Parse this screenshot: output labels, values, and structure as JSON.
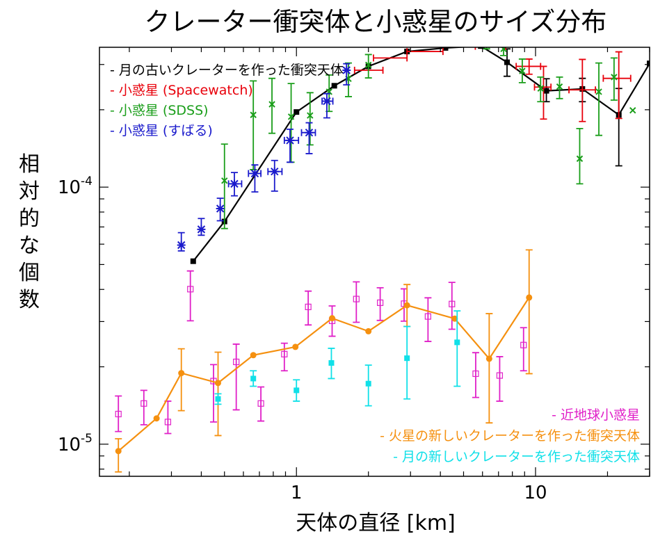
{
  "chart_data": {
    "type": "scatter",
    "title": "クレーター衝突体と小惑星のサイズ分布",
    "xlabel": "天体の直径 [km]",
    "ylabel": [
      "相",
      "対",
      "的",
      "な",
      "個",
      "数"
    ],
    "xscale": "log",
    "yscale": "log",
    "xlim": [
      0.15,
      30
    ],
    "ylim": [
      7.5e-06,
      0.00035
    ],
    "xticks": [
      {
        "value": 1,
        "label": "1"
      },
      {
        "value": 10,
        "label": "10"
      }
    ],
    "yticks": [
      {
        "value": 0.0001,
        "base": "10",
        "exp": "-4"
      },
      {
        "value": 1e-05,
        "base": "10",
        "exp": "-5"
      }
    ],
    "grid": false,
    "legend_top": [
      "old_moon",
      "spacewatch",
      "sdss",
      "subaru"
    ],
    "legend_bottom": [
      "neo",
      "mars",
      "new_moon"
    ],
    "series": [
      {
        "key": "old_moon",
        "name": "- 月の古いクレーターを作った衝突天体",
        "color": "#000000",
        "marker": "filled-square",
        "line": true,
        "points": [
          {
            "x": 0.37,
            "y": 5.15e-05
          },
          {
            "x": 0.5,
            "y": 7.35e-05
          },
          {
            "x": 1.0,
            "y": 0.000196
          },
          {
            "x": 1.44,
            "y": 0.000248
          },
          {
            "x": 2.0,
            "y": 0.000295
          },
          {
            "x": 2.9,
            "y": 0.000337
          },
          {
            "x": 4.2,
            "y": 0.000348
          },
          {
            "x": 5.9,
            "y": 0.000354
          },
          {
            "x": 7.6,
            "y": 0.000306,
            "ylo": 0.00027,
            "yhi": 0.000345
          },
          {
            "x": 11.1,
            "y": 0.000237,
            "ylo": 0.000215,
            "yhi": 0.000264
          },
          {
            "x": 15.7,
            "y": 0.000241,
            "ylo": 0.000215,
            "yhi": 0.000265
          },
          {
            "x": 22.3,
            "y": 0.000191,
            "ylo": 0.000121,
            "yhi": 0.000242
          },
          {
            "x": 30,
            "y": 0.000303
          }
        ]
      },
      {
        "key": "spacewatch",
        "name": "- 小惑星 (Spacewatch)",
        "color": "#e8000b",
        "marker": "none",
        "line": false,
        "points": [
          {
            "x": 1.95,
            "y": 0.000285,
            "xlo": 1.75,
            "xhi": 2.3
          },
          {
            "x": 2.45,
            "y": 0.000318,
            "xlo": 2.1,
            "xhi": 2.9
          },
          {
            "x": 3.4,
            "y": 0.000337,
            "xlo": 2.9,
            "xhi": 4.1
          },
          {
            "x": 4.6,
            "y": 0.000395,
            "ylo": 0.000375,
            "yhi": 0.000405,
            "xlo": 4.0,
            "xhi": 5.3
          },
          {
            "x": 6.6,
            "y": 0.000353,
            "xlo": 5.6,
            "xhi": 7.5
          },
          {
            "x": 9.4,
            "y": 0.000295,
            "ylo": 0.000275,
            "yhi": 0.000315,
            "xlo": 8.3,
            "xhi": 10.5
          },
          {
            "x": 10.8,
            "y": 0.000245,
            "ylo": 0.000184,
            "yhi": 0.000295,
            "xlo": 9.9,
            "xhi": 11.6
          },
          {
            "x": 15.7,
            "y": 0.000239,
            "ylo": 0.00018,
            "yhi": 0.000314,
            "xlo": 13.8,
            "xhi": 17.8
          },
          {
            "x": 22.3,
            "y": 0.000265,
            "ylo": 0.000185,
            "yhi": 0.000336,
            "xlo": 19.2,
            "xhi": 25.0
          }
        ]
      },
      {
        "key": "sdss",
        "name": "- 小惑星 (SDSS)",
        "color": "#1a9e1a",
        "marker": "cross",
        "line": false,
        "points": [
          {
            "x": 0.5,
            "y": 0.000106,
            "ylo": 6.9e-05,
            "yhi": 0.000147
          },
          {
            "x": 0.66,
            "y": 0.000191,
            "ylo": 0.000117,
            "yhi": 0.000259
          },
          {
            "x": 0.79,
            "y": 0.00021,
            "ylo": 0.000162,
            "yhi": 0.000265
          },
          {
            "x": 0.95,
            "y": 0.000188,
            "ylo": 0.000125,
            "yhi": 0.000253
          },
          {
            "x": 1.14,
            "y": 0.00019,
            "ylo": 0.000146,
            "yhi": 0.000233
          },
          {
            "x": 1.37,
            "y": 0.000235,
            "ylo": 0.000197,
            "yhi": 0.000273
          },
          {
            "x": 1.65,
            "y": 0.000264,
            "ylo": 0.000225,
            "yhi": 0.000304
          },
          {
            "x": 2.0,
            "y": 0.000299,
            "ylo": 0.000266,
            "yhi": 0.000328
          },
          {
            "x": 3.45,
            "y": 0.000364,
            "ylo": 0.000352,
            "yhi": 0.000376
          },
          {
            "x": 4.1,
            "y": 0.000368,
            "ylo": 0.000356,
            "yhi": 0.000377
          },
          {
            "x": 4.9,
            "y": 0.000375,
            "ylo": 0.000362,
            "yhi": 0.000384
          },
          {
            "x": 6.25,
            "y": 0.000357,
            "ylo": 0.000345,
            "yhi": 0.000366
          },
          {
            "x": 7.35,
            "y": 0.000345,
            "ylo": 0.000325,
            "yhi": 0.000356
          },
          {
            "x": 8.8,
            "y": 0.000283,
            "ylo": 0.000255,
            "yhi": 0.000315
          },
          {
            "x": 10.5,
            "y": 0.000242,
            "ylo": 0.000215,
            "yhi": 0.000268
          },
          {
            "x": 12.6,
            "y": 0.000246,
            "ylo": 0.000221,
            "yhi": 0.000268
          },
          {
            "x": 15.3,
            "y": 0.000129,
            "ylo": 0.000103,
            "yhi": 0.000169
          },
          {
            "x": 18.4,
            "y": 0.000235,
            "ylo": 0.000159,
            "yhi": 0.000304
          },
          {
            "x": 21.3,
            "y": 0.000268,
            "ylo": 0.000218,
            "yhi": 0.000318
          },
          {
            "x": 25.5,
            "y": 0.000199
          }
        ]
      },
      {
        "key": "subaru",
        "name": "- 小惑星 (すばる)",
        "color": "#1a1acc",
        "marker": "asterisk",
        "line": false,
        "points": [
          {
            "x": 0.33,
            "y": 5.95e-05,
            "ylo": 5.65e-05,
            "yhi": 6.65e-05
          },
          {
            "x": 0.4,
            "y": 6.85e-05,
            "ylo": 6.5e-05,
            "yhi": 7.55e-05
          },
          {
            "x": 0.48,
            "y": 8.25e-05,
            "ylo": 7.4e-05,
            "yhi": 9.05e-05
          },
          {
            "x": 0.55,
            "y": 0.000103,
            "ylo": 9.25e-05,
            "yhi": 0.000114,
            "xlo": 0.52,
            "xhi": 0.59
          },
          {
            "x": 0.67,
            "y": 0.000113,
            "ylo": 9.58e-05,
            "yhi": 0.000122,
            "xlo": 0.63,
            "xhi": 0.71
          },
          {
            "x": 0.81,
            "y": 0.000115,
            "ylo": 9.65e-05,
            "yhi": 0.000127,
            "xlo": 0.76,
            "xhi": 0.87
          },
          {
            "x": 0.94,
            "y": 0.000152,
            "ylo": 0.000125,
            "yhi": 0.000168,
            "xlo": 0.89,
            "xhi": 1.02
          },
          {
            "x": 1.13,
            "y": 0.000163,
            "ylo": 0.000135,
            "yhi": 0.000178,
            "xlo": 1.05,
            "xhi": 1.2
          },
          {
            "x": 1.34,
            "y": 0.000216,
            "ylo": 0.000186,
            "yhi": 0.000231,
            "xlo": 1.28,
            "xhi": 1.42
          },
          {
            "x": 1.62,
            "y": 0.000285,
            "ylo": 0.00025,
            "yhi": 0.000302
          }
        ]
      },
      {
        "key": "neo",
        "name": "- 近地球小惑星",
        "color": "#e020c8",
        "marker": "open-square",
        "line": false,
        "points": [
          {
            "x": 0.18,
            "y": 1.31e-05,
            "ylo": 1.12e-05,
            "yhi": 1.54e-05
          },
          {
            "x": 0.23,
            "y": 1.44e-05,
            "ylo": 1.19e-05,
            "yhi": 1.62e-05
          },
          {
            "x": 0.29,
            "y": 1.22e-05,
            "ylo": 1.1e-05,
            "yhi": 1.47e-05
          },
          {
            "x": 0.36,
            "y": 4.01e-05,
            "ylo": 3.02e-05,
            "yhi": 4.72e-05
          },
          {
            "x": 0.45,
            "y": 1.76e-05,
            "ylo": 1.22e-05,
            "yhi": 2.04e-05
          },
          {
            "x": 0.56,
            "y": 2.09e-05,
            "ylo": 1.36e-05,
            "yhi": 2.45e-05
          },
          {
            "x": 0.71,
            "y": 1.44e-05,
            "ylo": 1.23e-05,
            "yhi": 1.67e-05
          },
          {
            "x": 0.89,
            "y": 2.24e-05,
            "ylo": 1.93e-05,
            "yhi": 2.47e-05
          },
          {
            "x": 1.12,
            "y": 3.42e-05,
            "ylo": 2.91e-05,
            "yhi": 3.94e-05
          },
          {
            "x": 1.41,
            "y": 3.02e-05,
            "ylo": 2.63e-05,
            "yhi": 3.45e-05
          },
          {
            "x": 1.78,
            "y": 3.67e-05,
            "ylo": 2.98e-05,
            "yhi": 4.28e-05
          },
          {
            "x": 2.24,
            "y": 3.55e-05,
            "ylo": 3.03e-05,
            "yhi": 4.06e-05
          },
          {
            "x": 2.82,
            "y": 3.52e-05,
            "ylo": 3.01e-05,
            "yhi": 4.02e-05
          },
          {
            "x": 3.55,
            "y": 3.14e-05,
            "ylo": 2.51e-05,
            "yhi": 3.71e-05
          },
          {
            "x": 4.47,
            "y": 3.51e-05,
            "ylo": 2.8e-05,
            "yhi": 4.26e-05
          },
          {
            "x": 5.62,
            "y": 1.88e-05,
            "ylo": 1.52e-05,
            "yhi": 2.27e-05
          },
          {
            "x": 7.08,
            "y": 1.85e-05,
            "ylo": 1.47e-05,
            "yhi": 2.19e-05
          },
          {
            "x": 8.91,
            "y": 2.43e-05,
            "ylo": 1.93e-05,
            "yhi": 2.84e-05
          }
        ]
      },
      {
        "key": "mars",
        "name": "- 火星の新しいクレーターを作った衝突天体",
        "color": "#f5900f",
        "marker": "filled-circle",
        "line": true,
        "points": [
          {
            "x": 0.18,
            "y": 9.4e-06,
            "ylo": 7.8e-06,
            "yhi": 1.05e-05
          },
          {
            "x": 0.26,
            "y": 1.26e-05
          },
          {
            "x": 0.33,
            "y": 1.89e-05,
            "ylo": 1.35e-05,
            "yhi": 2.35e-05
          },
          {
            "x": 0.47,
            "y": 1.73e-05,
            "ylo": 1.08e-05,
            "yhi": 2.28e-05
          },
          {
            "x": 0.66,
            "y": 2.22e-05
          },
          {
            "x": 0.99,
            "y": 2.39e-05
          },
          {
            "x": 1.41,
            "y": 3.09e-05
          },
          {
            "x": 2.0,
            "y": 2.75e-05
          },
          {
            "x": 2.9,
            "y": 3.47e-05,
            "ylo": 2.87e-05,
            "yhi": 4.18e-05
          },
          {
            "x": 4.59,
            "y": 3.08e-05
          },
          {
            "x": 6.4,
            "y": 2.15e-05,
            "ylo": 1.21e-05,
            "yhi": 3.22e-05
          },
          {
            "x": 9.4,
            "y": 3.72e-05,
            "ylo": 1.88e-05,
            "yhi": 5.7e-05
          }
        ]
      },
      {
        "key": "new_moon",
        "name": "- 月の新しいクレーターを作った衝突天体",
        "color": "#10e0e8",
        "marker": "filled-square",
        "line": false,
        "points": [
          {
            "x": 0.47,
            "y": 1.5e-05,
            "ylo": 1.43e-05,
            "yhi": 1.57e-05
          },
          {
            "x": 0.66,
            "y": 1.8e-05,
            "ylo": 1.68e-05,
            "yhi": 1.93e-05
          },
          {
            "x": 1.0,
            "y": 1.62e-05,
            "ylo": 1.47e-05,
            "yhi": 1.78e-05
          },
          {
            "x": 1.4,
            "y": 2.07e-05,
            "ylo": 1.8e-05,
            "yhi": 2.36e-05
          },
          {
            "x": 2.0,
            "y": 1.72e-05,
            "ylo": 1.41e-05,
            "yhi": 2.03e-05
          },
          {
            "x": 2.9,
            "y": 2.16e-05,
            "ylo": 1.5e-05,
            "yhi": 2.87e-05
          },
          {
            "x": 4.7,
            "y": 2.49e-05,
            "ylo": 1.68e-05,
            "yhi": 3.3e-05
          }
        ]
      }
    ]
  }
}
